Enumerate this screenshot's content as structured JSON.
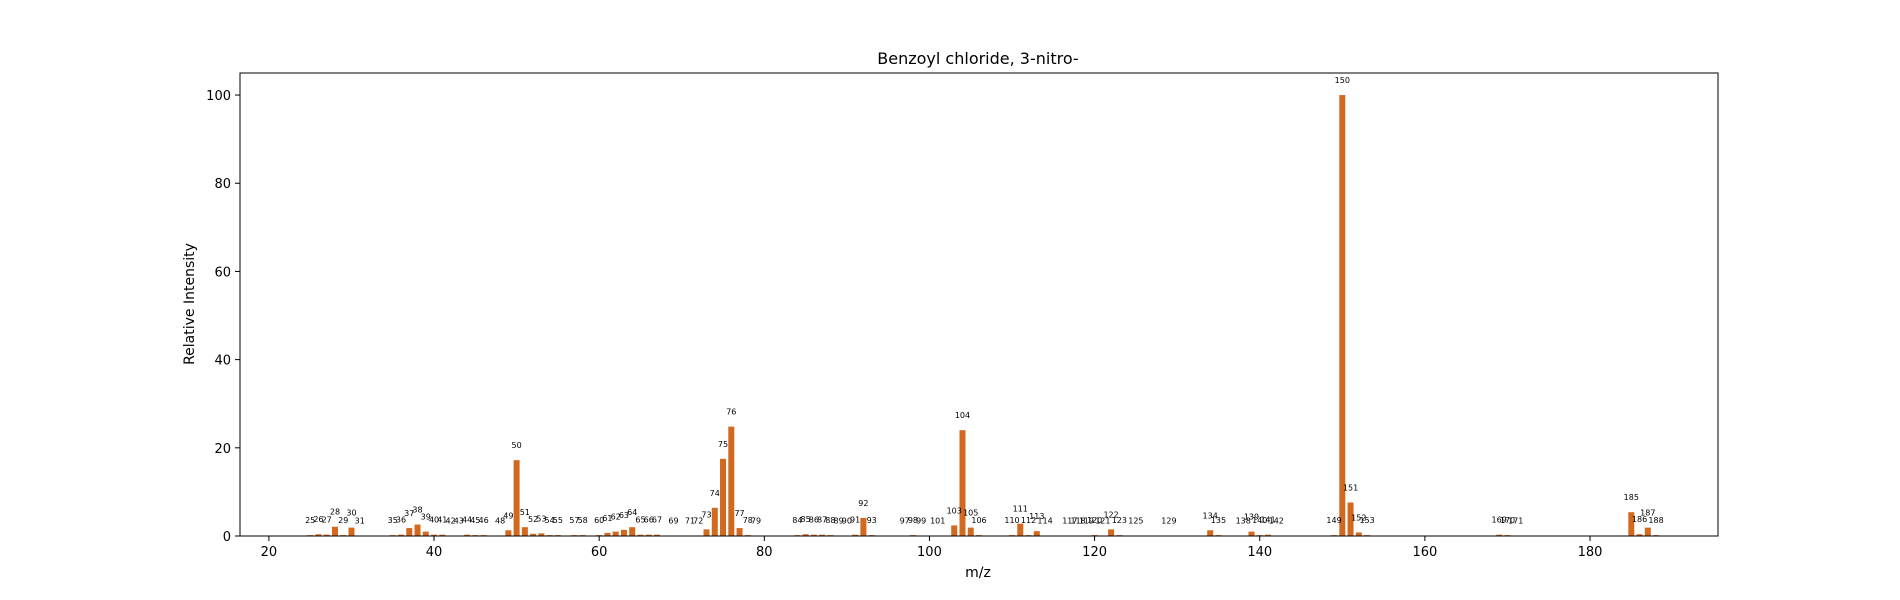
{
  "chart_data": {
    "type": "bar",
    "title": "Benzoyl chloride, 3-nitro-",
    "xlabel": "m/z",
    "ylabel": "Relative Intensity",
    "xlim": [
      16.5,
      195.5
    ],
    "ylim": [
      0,
      105
    ],
    "xticks": [
      20,
      40,
      60,
      80,
      100,
      120,
      140,
      160,
      180
    ],
    "yticks": [
      0,
      20,
      40,
      60,
      80,
      100
    ],
    "grid": false,
    "bar_color": "#d2691e",
    "peaks": [
      {
        "mz": 25,
        "intensity": 0.2
      },
      {
        "mz": 26,
        "intensity": 0.4
      },
      {
        "mz": 27,
        "intensity": 0.3
      },
      {
        "mz": 28,
        "intensity": 2.1
      },
      {
        "mz": 29,
        "intensity": 0.2
      },
      {
        "mz": 30,
        "intensity": 1.9
      },
      {
        "mz": 31,
        "intensity": 0.1
      },
      {
        "mz": 35,
        "intensity": 0.2
      },
      {
        "mz": 36,
        "intensity": 0.3
      },
      {
        "mz": 37,
        "intensity": 1.8
      },
      {
        "mz": 38,
        "intensity": 2.6
      },
      {
        "mz": 39,
        "intensity": 1.0
      },
      {
        "mz": 40,
        "intensity": 0.3
      },
      {
        "mz": 41,
        "intensity": 0.3
      },
      {
        "mz": 42,
        "intensity": 0.1
      },
      {
        "mz": 43,
        "intensity": 0.1
      },
      {
        "mz": 44,
        "intensity": 0.3
      },
      {
        "mz": 45,
        "intensity": 0.2
      },
      {
        "mz": 46,
        "intensity": 0.2
      },
      {
        "mz": 48,
        "intensity": 0.1
      },
      {
        "mz": 49,
        "intensity": 1.3
      },
      {
        "mz": 50,
        "intensity": 17.2
      },
      {
        "mz": 51,
        "intensity": 2.0
      },
      {
        "mz": 52,
        "intensity": 0.5
      },
      {
        "mz": 53,
        "intensity": 0.6
      },
      {
        "mz": 54,
        "intensity": 0.2
      },
      {
        "mz": 55,
        "intensity": 0.2
      },
      {
        "mz": 57,
        "intensity": 0.2
      },
      {
        "mz": 58,
        "intensity": 0.2
      },
      {
        "mz": 60,
        "intensity": 0.2
      },
      {
        "mz": 61,
        "intensity": 0.7
      },
      {
        "mz": 62,
        "intensity": 1.0
      },
      {
        "mz": 63,
        "intensity": 1.4
      },
      {
        "mz": 64,
        "intensity": 2.0
      },
      {
        "mz": 65,
        "intensity": 0.3
      },
      {
        "mz": 66,
        "intensity": 0.3
      },
      {
        "mz": 67,
        "intensity": 0.3
      },
      {
        "mz": 69,
        "intensity": 0.1
      },
      {
        "mz": 71,
        "intensity": 0.1
      },
      {
        "mz": 72,
        "intensity": 0.1
      },
      {
        "mz": 73,
        "intensity": 1.5
      },
      {
        "mz": 74,
        "intensity": 6.4
      },
      {
        "mz": 75,
        "intensity": 17.5
      },
      {
        "mz": 76,
        "intensity": 24.8
      },
      {
        "mz": 77,
        "intensity": 1.8
      },
      {
        "mz": 78,
        "intensity": 0.2
      },
      {
        "mz": 79,
        "intensity": 0.1
      },
      {
        "mz": 84,
        "intensity": 0.2
      },
      {
        "mz": 85,
        "intensity": 0.4
      },
      {
        "mz": 86,
        "intensity": 0.3
      },
      {
        "mz": 87,
        "intensity": 0.3
      },
      {
        "mz": 88,
        "intensity": 0.2
      },
      {
        "mz": 89,
        "intensity": 0.1
      },
      {
        "mz": 90,
        "intensity": 0.1
      },
      {
        "mz": 91,
        "intensity": 0.3
      },
      {
        "mz": 92,
        "intensity": 4.1
      },
      {
        "mz": 93,
        "intensity": 0.2
      },
      {
        "mz": 97,
        "intensity": 0.1
      },
      {
        "mz": 98,
        "intensity": 0.2
      },
      {
        "mz": 99,
        "intensity": 0.1
      },
      {
        "mz": 101,
        "intensity": 0.1
      },
      {
        "mz": 103,
        "intensity": 2.4
      },
      {
        "mz": 104,
        "intensity": 24.0
      },
      {
        "mz": 105,
        "intensity": 1.9
      },
      {
        "mz": 106,
        "intensity": 0.2
      },
      {
        "mz": 110,
        "intensity": 0.2
      },
      {
        "mz": 111,
        "intensity": 2.8
      },
      {
        "mz": 112,
        "intensity": 0.2
      },
      {
        "mz": 113,
        "intensity": 1.1
      },
      {
        "mz": 114,
        "intensity": 0.1
      },
      {
        "mz": 117,
        "intensity": 0.1
      },
      {
        "mz": 118,
        "intensity": 0.1
      },
      {
        "mz": 119,
        "intensity": 0.1
      },
      {
        "mz": 120,
        "intensity": 0.2
      },
      {
        "mz": 121,
        "intensity": 0.1
      },
      {
        "mz": 122,
        "intensity": 1.5
      },
      {
        "mz": 123,
        "intensity": 0.2
      },
      {
        "mz": 125,
        "intensity": 0.1
      },
      {
        "mz": 129,
        "intensity": 0.1
      },
      {
        "mz": 134,
        "intensity": 1.3
      },
      {
        "mz": 135,
        "intensity": 0.2
      },
      {
        "mz": 138,
        "intensity": 0.1
      },
      {
        "mz": 139,
        "intensity": 1.0
      },
      {
        "mz": 140,
        "intensity": 0.2
      },
      {
        "mz": 141,
        "intensity": 0.3
      },
      {
        "mz": 142,
        "intensity": 0.1
      },
      {
        "mz": 149,
        "intensity": 0.2
      },
      {
        "mz": 150,
        "intensity": 100.0
      },
      {
        "mz": 151,
        "intensity": 7.6
      },
      {
        "mz": 152,
        "intensity": 0.8
      },
      {
        "mz": 153,
        "intensity": 0.2
      },
      {
        "mz": 169,
        "intensity": 0.3
      },
      {
        "mz": 170,
        "intensity": 0.2
      },
      {
        "mz": 171,
        "intensity": 0.1
      },
      {
        "mz": 185,
        "intensity": 5.4
      },
      {
        "mz": 186,
        "intensity": 0.4
      },
      {
        "mz": 187,
        "intensity": 1.9
      },
      {
        "mz": 188,
        "intensity": 0.2
      }
    ]
  }
}
